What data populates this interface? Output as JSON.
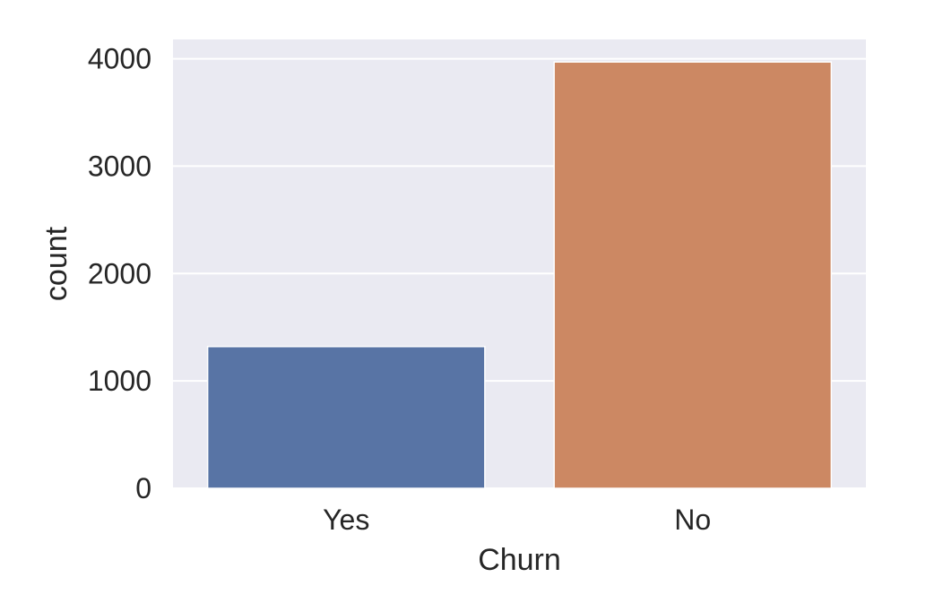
{
  "chart_data": {
    "type": "bar",
    "categories": [
      "Yes",
      "No"
    ],
    "values": [
      1320,
      3970
    ],
    "xlabel": "Churn",
    "ylabel": "count",
    "ylim": [
      0,
      4180
    ],
    "yticks": [
      0,
      1000,
      2000,
      3000,
      4000
    ],
    "grid": true,
    "colors": {
      "background": "#eaeaf2",
      "grid": "#ffffff",
      "bars": [
        "#5874a5",
        "#cc8863"
      ]
    }
  }
}
